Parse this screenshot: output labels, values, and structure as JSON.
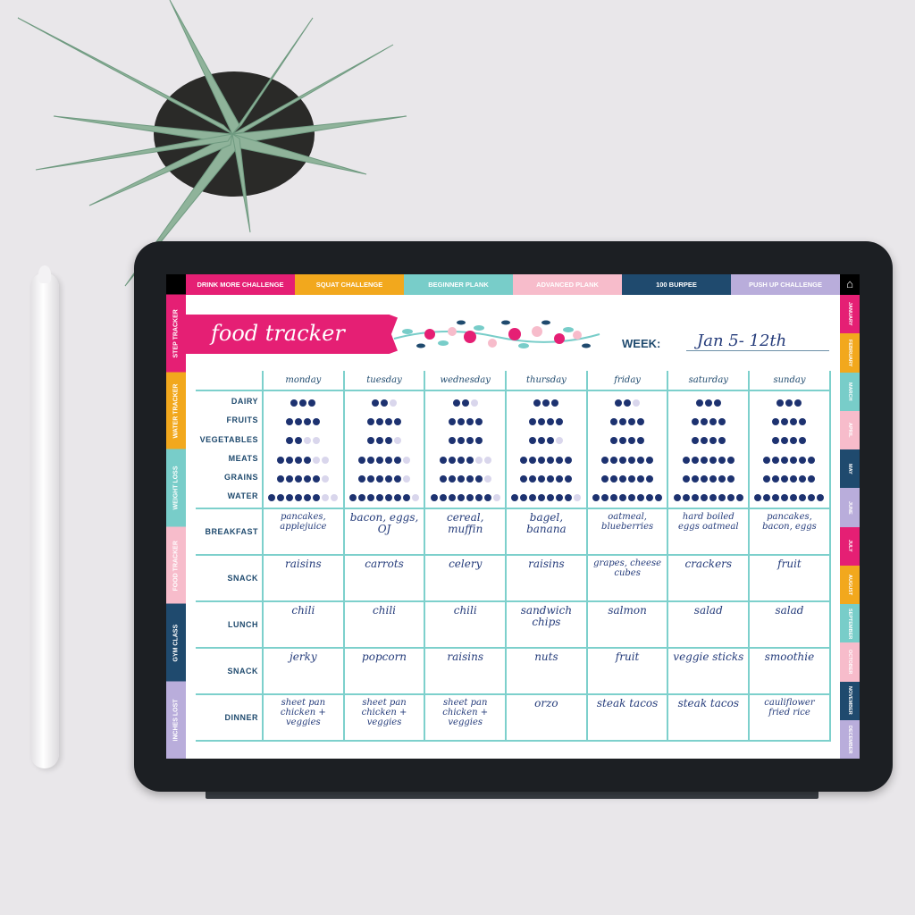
{
  "top_tabs": [
    {
      "label": "DRINK MORE CHALLENGE",
      "color": "#e51f74"
    },
    {
      "label": "SQUAT CHALLENGE",
      "color": "#f2a81d"
    },
    {
      "label": "BEGINNER PLANK",
      "color": "#78cdc9"
    },
    {
      "label": "ADVANCED PLANK",
      "color": "#f7bccb"
    },
    {
      "label": "100 BURPEE",
      "color": "#1f4a6e"
    },
    {
      "label": "PUSH UP CHALLENGE",
      "color": "#b9addb"
    }
  ],
  "home_icon": "home-icon",
  "left_tabs": [
    {
      "label": "STEP TRACKER",
      "color": "#e51f74"
    },
    {
      "label": "WATER TRACKER",
      "color": "#f2a81d"
    },
    {
      "label": "WEIGHT LOSS",
      "color": "#78cdc9"
    },
    {
      "label": "FOOD TRACKER",
      "color": "#f7bccb"
    },
    {
      "label": "GYM CLASS",
      "color": "#1f4a6e"
    },
    {
      "label": "INCHES LOST",
      "color": "#b9addb"
    }
  ],
  "months": [
    "JANUARY",
    "FEBRUARY",
    "MARCH",
    "APRIL",
    "MAY",
    "JUNE",
    "JULY",
    "AUGUST",
    "SEPTEMBER",
    "OCTOBER",
    "NOVEMBER",
    "DECEMBER"
  ],
  "month_colors": [
    "#e51f74",
    "#f2a81d",
    "#78cdc9",
    "#f7bccb",
    "#1f4a6e",
    "#b9addb"
  ],
  "title": "food tracker",
  "week_label": "WEEK:",
  "week_value": "Jan 5- 12th",
  "days": [
    "monday",
    "tuesday",
    "wednesday",
    "thursday",
    "friday",
    "saturday",
    "sunday"
  ],
  "food_groups": [
    {
      "label": "DAIRY",
      "total": 3,
      "filled": [
        3,
        2,
        2,
        3,
        2,
        3,
        3
      ]
    },
    {
      "label": "FRUITS",
      "total": 4,
      "filled": [
        4,
        4,
        4,
        4,
        4,
        4,
        4
      ]
    },
    {
      "label": "VEGETABLES",
      "total": 4,
      "filled": [
        2,
        3,
        4,
        3,
        4,
        4,
        4
      ]
    },
    {
      "label": "MEATS",
      "total": 6,
      "filled": [
        4,
        5,
        4,
        6,
        6,
        6,
        6
      ]
    },
    {
      "label": "GRAINS",
      "total": 6,
      "filled": [
        5,
        5,
        5,
        6,
        6,
        6,
        6
      ]
    },
    {
      "label": "WATER",
      "total": 8,
      "filled": [
        6,
        7,
        7,
        7,
        8,
        8,
        8
      ]
    }
  ],
  "meals": [
    {
      "label": "BREAKFAST",
      "entries": [
        "pancakes, applejuice",
        "bacon, eggs, OJ",
        "cereal, muffin",
        "bagel, banana",
        "oatmeal, blueberries",
        "hard boiled eggs oatmeal",
        "pancakes, bacon, eggs"
      ]
    },
    {
      "label": "SNACK",
      "entries": [
        "raisins",
        "carrots",
        "celery",
        "raisins",
        "grapes, cheese cubes",
        "crackers",
        "fruit"
      ]
    },
    {
      "label": "LUNCH",
      "entries": [
        "chili",
        "chili",
        "chili",
        "sandwich chips",
        "salmon",
        "salad",
        "salad"
      ]
    },
    {
      "label": "SNACK",
      "entries": [
        "jerky",
        "popcorn",
        "raisins",
        "nuts",
        "fruit",
        "veggie sticks",
        "smoothie"
      ]
    },
    {
      "label": "DINNER",
      "entries": [
        "sheet pan chicken + veggies",
        "sheet pan chicken + veggies",
        "sheet pan chicken + veggies",
        "orzo",
        "steak tacos",
        "steak tacos",
        "cauliflower fried rice"
      ]
    }
  ]
}
